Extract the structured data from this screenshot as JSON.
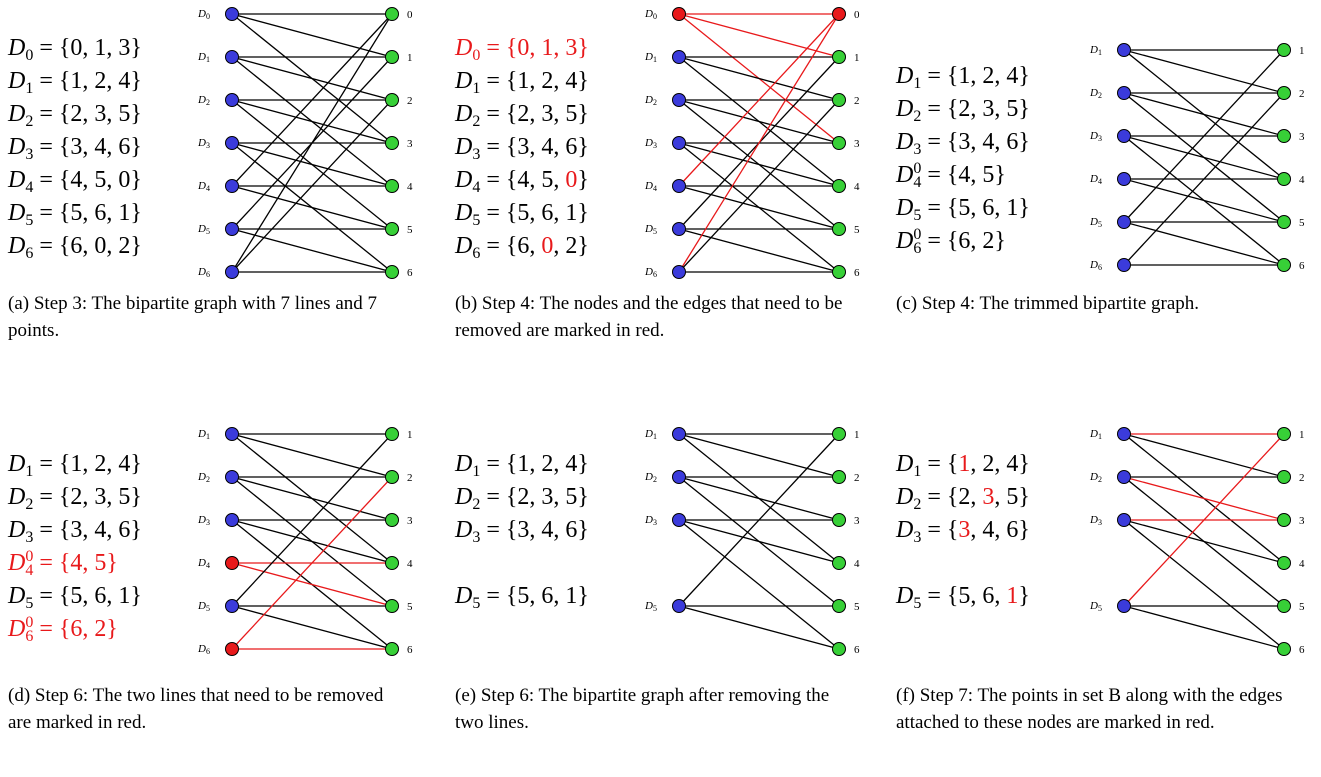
{
  "colors": {
    "line_node": "#3b3bdb",
    "point_node": "#37d037",
    "removed": "#e8191b",
    "edge": "#000000"
  },
  "panels": [
    {
      "id": "a",
      "caption": {
        "label": "(a)",
        "text": "Step 3: The bipartite graph with 7 lines and 7 points."
      },
      "sets": [
        {
          "name": "D",
          "sub": "0",
          "elements": [
            "0",
            "1",
            "3"
          ]
        },
        {
          "name": "D",
          "sub": "1",
          "elements": [
            "1",
            "2",
            "4"
          ]
        },
        {
          "name": "D",
          "sub": "2",
          "elements": [
            "2",
            "3",
            "5"
          ]
        },
        {
          "name": "D",
          "sub": "3",
          "elements": [
            "3",
            "4",
            "6"
          ]
        },
        {
          "name": "D",
          "sub": "4",
          "elements": [
            "4",
            "5",
            "0"
          ]
        },
        {
          "name": "D",
          "sub": "5",
          "elements": [
            "5",
            "6",
            "1"
          ]
        },
        {
          "name": "D",
          "sub": "6",
          "elements": [
            "6",
            "0",
            "2"
          ]
        }
      ],
      "left_nodes": [
        {
          "label": "D0",
          "slot": 0
        },
        {
          "label": "D1",
          "slot": 1
        },
        {
          "label": "D2",
          "slot": 2
        },
        {
          "label": "D3",
          "slot": 3
        },
        {
          "label": "D4",
          "slot": 4
        },
        {
          "label": "D5",
          "slot": 5
        },
        {
          "label": "D6",
          "slot": 6
        }
      ],
      "right_nodes": [
        {
          "label": "0",
          "slot": 0
        },
        {
          "label": "1",
          "slot": 1
        },
        {
          "label": "2",
          "slot": 2
        },
        {
          "label": "3",
          "slot": 3
        },
        {
          "label": "4",
          "slot": 4
        },
        {
          "label": "5",
          "slot": 5
        },
        {
          "label": "6",
          "slot": 6
        }
      ],
      "edges": [
        [
          "D0",
          "0"
        ],
        [
          "D0",
          "1"
        ],
        [
          "D0",
          "3"
        ],
        [
          "D1",
          "1"
        ],
        [
          "D1",
          "2"
        ],
        [
          "D1",
          "4"
        ],
        [
          "D2",
          "2"
        ],
        [
          "D2",
          "3"
        ],
        [
          "D2",
          "5"
        ],
        [
          "D3",
          "3"
        ],
        [
          "D3",
          "4"
        ],
        [
          "D3",
          "6"
        ],
        [
          "D4",
          "4"
        ],
        [
          "D4",
          "5"
        ],
        [
          "D4",
          "0"
        ],
        [
          "D5",
          "5"
        ],
        [
          "D5",
          "6"
        ],
        [
          "D5",
          "1"
        ],
        [
          "D6",
          "6"
        ],
        [
          "D6",
          "0"
        ],
        [
          "D6",
          "2"
        ]
      ]
    },
    {
      "id": "b",
      "caption": {
        "label": "(b)",
        "text": "Step 4: The nodes and the edges that need to be removed are marked in red."
      },
      "sets": [
        {
          "name": "D",
          "sub": "0",
          "elements": [
            "0",
            "1",
            "3"
          ],
          "red": true
        },
        {
          "name": "D",
          "sub": "1",
          "elements": [
            "1",
            "2",
            "4"
          ]
        },
        {
          "name": "D",
          "sub": "2",
          "elements": [
            "2",
            "3",
            "5"
          ]
        },
        {
          "name": "D",
          "sub": "3",
          "elements": [
            "3",
            "4",
            "6"
          ]
        },
        {
          "name": "D",
          "sub": "4",
          "elements": [
            "4",
            "5",
            "0"
          ],
          "red_elements": [
            2
          ]
        },
        {
          "name": "D",
          "sub": "5",
          "elements": [
            "5",
            "6",
            "1"
          ]
        },
        {
          "name": "D",
          "sub": "6",
          "elements": [
            "6",
            "0",
            "2"
          ],
          "red_elements": [
            1
          ]
        }
      ],
      "left_nodes": [
        {
          "label": "D0",
          "slot": 0,
          "red": true
        },
        {
          "label": "D1",
          "slot": 1
        },
        {
          "label": "D2",
          "slot": 2
        },
        {
          "label": "D3",
          "slot": 3
        },
        {
          "label": "D4",
          "slot": 4
        },
        {
          "label": "D5",
          "slot": 5
        },
        {
          "label": "D6",
          "slot": 6
        }
      ],
      "right_nodes": [
        {
          "label": "0",
          "slot": 0,
          "red": true
        },
        {
          "label": "1",
          "slot": 1
        },
        {
          "label": "2",
          "slot": 2
        },
        {
          "label": "3",
          "slot": 3
        },
        {
          "label": "4",
          "slot": 4
        },
        {
          "label": "5",
          "slot": 5
        },
        {
          "label": "6",
          "slot": 6
        }
      ],
      "edges": [
        [
          "D0",
          "0",
          1
        ],
        [
          "D0",
          "1",
          1
        ],
        [
          "D0",
          "3",
          1
        ],
        [
          "D1",
          "1"
        ],
        [
          "D1",
          "2"
        ],
        [
          "D1",
          "4"
        ],
        [
          "D2",
          "2"
        ],
        [
          "D2",
          "3"
        ],
        [
          "D2",
          "5"
        ],
        [
          "D3",
          "3"
        ],
        [
          "D3",
          "4"
        ],
        [
          "D3",
          "6"
        ],
        [
          "D4",
          "4"
        ],
        [
          "D4",
          "5"
        ],
        [
          "D4",
          "0",
          1
        ],
        [
          "D5",
          "5"
        ],
        [
          "D5",
          "6"
        ],
        [
          "D5",
          "1"
        ],
        [
          "D6",
          "6"
        ],
        [
          "D6",
          "0",
          1
        ],
        [
          "D6",
          "2"
        ]
      ]
    },
    {
      "id": "c",
      "caption": {
        "label": "(c)",
        "text": "Step 4: The trimmed bipartite graph."
      },
      "sets": [
        {
          "name": "D",
          "sub": "1",
          "elements": [
            "1",
            "2",
            "4"
          ]
        },
        {
          "name": "D",
          "sub": "2",
          "elements": [
            "2",
            "3",
            "5"
          ]
        },
        {
          "name": "D",
          "sub": "3",
          "elements": [
            "3",
            "4",
            "6"
          ]
        },
        {
          "name": "D",
          "sub": "4",
          "sup": "0",
          "elements": [
            "4",
            "5"
          ]
        },
        {
          "name": "D",
          "sub": "5",
          "elements": [
            "5",
            "6",
            "1"
          ]
        },
        {
          "name": "D",
          "sub": "6",
          "sup": "0",
          "elements": [
            "6",
            "2"
          ]
        }
      ],
      "left_nodes": [
        {
          "label": "D1",
          "slot": 0
        },
        {
          "label": "D2",
          "slot": 1
        },
        {
          "label": "D3",
          "slot": 2
        },
        {
          "label": "D4",
          "slot": 3
        },
        {
          "label": "D5",
          "slot": 4
        },
        {
          "label": "D6",
          "slot": 5
        }
      ],
      "right_nodes": [
        {
          "label": "1",
          "slot": 0
        },
        {
          "label": "2",
          "slot": 1
        },
        {
          "label": "3",
          "slot": 2
        },
        {
          "label": "4",
          "slot": 3
        },
        {
          "label": "5",
          "slot": 4
        },
        {
          "label": "6",
          "slot": 5
        }
      ],
      "edges": [
        [
          "D1",
          "1"
        ],
        [
          "D1",
          "2"
        ],
        [
          "D1",
          "4"
        ],
        [
          "D2",
          "2"
        ],
        [
          "D2",
          "3"
        ],
        [
          "D2",
          "5"
        ],
        [
          "D3",
          "3"
        ],
        [
          "D3",
          "4"
        ],
        [
          "D3",
          "6"
        ],
        [
          "D4",
          "4"
        ],
        [
          "D4",
          "5"
        ],
        [
          "D5",
          "5"
        ],
        [
          "D5",
          "6"
        ],
        [
          "D5",
          "1"
        ],
        [
          "D6",
          "6"
        ],
        [
          "D6",
          "2"
        ]
      ]
    },
    {
      "id": "d",
      "caption": {
        "label": "(d)",
        "text": "Step 6: The two lines that need to be removed are marked in red."
      },
      "sets": [
        {
          "name": "D",
          "sub": "1",
          "elements": [
            "1",
            "2",
            "4"
          ]
        },
        {
          "name": "D",
          "sub": "2",
          "elements": [
            "2",
            "3",
            "5"
          ]
        },
        {
          "name": "D",
          "sub": "3",
          "elements": [
            "3",
            "4",
            "6"
          ]
        },
        {
          "name": "D",
          "sub": "4",
          "sup": "0",
          "elements": [
            "4",
            "5"
          ],
          "red": true
        },
        {
          "name": "D",
          "sub": "5",
          "elements": [
            "5",
            "6",
            "1"
          ]
        },
        {
          "name": "D",
          "sub": "6",
          "sup": "0",
          "elements": [
            "6",
            "2"
          ],
          "red": true
        }
      ],
      "left_nodes": [
        {
          "label": "D1",
          "slot": 0
        },
        {
          "label": "D2",
          "slot": 1
        },
        {
          "label": "D3",
          "slot": 2
        },
        {
          "label": "D4",
          "slot": 3,
          "red": true
        },
        {
          "label": "D5",
          "slot": 4
        },
        {
          "label": "D6",
          "slot": 5,
          "red": true
        }
      ],
      "right_nodes": [
        {
          "label": "1",
          "slot": 0
        },
        {
          "label": "2",
          "slot": 1
        },
        {
          "label": "3",
          "slot": 2
        },
        {
          "label": "4",
          "slot": 3
        },
        {
          "label": "5",
          "slot": 4
        },
        {
          "label": "6",
          "slot": 5
        }
      ],
      "edges": [
        [
          "D1",
          "1"
        ],
        [
          "D1",
          "2"
        ],
        [
          "D1",
          "4"
        ],
        [
          "D2",
          "2"
        ],
        [
          "D2",
          "3"
        ],
        [
          "D2",
          "5"
        ],
        [
          "D3",
          "3"
        ],
        [
          "D3",
          "4"
        ],
        [
          "D3",
          "6"
        ],
        [
          "D4",
          "4",
          1
        ],
        [
          "D4",
          "5",
          1
        ],
        [
          "D5",
          "5"
        ],
        [
          "D5",
          "6"
        ],
        [
          "D5",
          "1"
        ],
        [
          "D6",
          "6",
          1
        ],
        [
          "D6",
          "2",
          1
        ]
      ]
    },
    {
      "id": "e",
      "caption": {
        "label": "(e)",
        "text": "Step 6: The bipartite graph after removing the two lines."
      },
      "sets": [
        {
          "name": "D",
          "sub": "1",
          "elements": [
            "1",
            "2",
            "4"
          ]
        },
        {
          "name": "D",
          "sub": "2",
          "elements": [
            "2",
            "3",
            "5"
          ]
        },
        {
          "name": "D",
          "sub": "3",
          "elements": [
            "3",
            "4",
            "6"
          ]
        },
        {
          "name": "D",
          "sub": "5",
          "elements": [
            "5",
            "6",
            "1"
          ],
          "gap": true
        }
      ],
      "left_nodes": [
        {
          "label": "D1",
          "slot": 0
        },
        {
          "label": "D2",
          "slot": 1
        },
        {
          "label": "D3",
          "slot": 2
        },
        {
          "label": "D5",
          "slot": 4
        }
      ],
      "right_nodes": [
        {
          "label": "1",
          "slot": 0
        },
        {
          "label": "2",
          "slot": 1
        },
        {
          "label": "3",
          "slot": 2
        },
        {
          "label": "4",
          "slot": 3
        },
        {
          "label": "5",
          "slot": 4
        },
        {
          "label": "6",
          "slot": 5
        }
      ],
      "edges": [
        [
          "D1",
          "1"
        ],
        [
          "D1",
          "2"
        ],
        [
          "D1",
          "4"
        ],
        [
          "D2",
          "2"
        ],
        [
          "D2",
          "3"
        ],
        [
          "D2",
          "5"
        ],
        [
          "D3",
          "3"
        ],
        [
          "D3",
          "4"
        ],
        [
          "D3",
          "6"
        ],
        [
          "D5",
          "5"
        ],
        [
          "D5",
          "6"
        ],
        [
          "D5",
          "1"
        ]
      ]
    },
    {
      "id": "f",
      "caption": {
        "label": "(f)",
        "text": "Step 7: The points in set B along with the edges attached to these nodes are marked in red."
      },
      "sets": [
        {
          "name": "D",
          "sub": "1",
          "elements": [
            "1",
            "2",
            "4"
          ],
          "red_elements": [
            0
          ]
        },
        {
          "name": "D",
          "sub": "2",
          "elements": [
            "2",
            "3",
            "5"
          ],
          "red_elements": [
            1
          ]
        },
        {
          "name": "D",
          "sub": "3",
          "elements": [
            "3",
            "4",
            "6"
          ],
          "red_elements": [
            0
          ]
        },
        {
          "name": "D",
          "sub": "5",
          "elements": [
            "5",
            "6",
            "1"
          ],
          "red_elements": [
            2
          ],
          "gap": true
        }
      ],
      "left_nodes": [
        {
          "label": "D1",
          "slot": 0
        },
        {
          "label": "D2",
          "slot": 1
        },
        {
          "label": "D3",
          "slot": 2
        },
        {
          "label": "D5",
          "slot": 4
        }
      ],
      "right_nodes": [
        {
          "label": "1",
          "slot": 0
        },
        {
          "label": "2",
          "slot": 1
        },
        {
          "label": "3",
          "slot": 2
        },
        {
          "label": "4",
          "slot": 3
        },
        {
          "label": "5",
          "slot": 4
        },
        {
          "label": "6",
          "slot": 5
        }
      ],
      "edges": [
        [
          "D1",
          "1",
          1
        ],
        [
          "D1",
          "2"
        ],
        [
          "D1",
          "4"
        ],
        [
          "D2",
          "2"
        ],
        [
          "D2",
          "3",
          1
        ],
        [
          "D2",
          "5"
        ],
        [
          "D3",
          "3",
          1
        ],
        [
          "D3",
          "4"
        ],
        [
          "D3",
          "6"
        ],
        [
          "D5",
          "5"
        ],
        [
          "D5",
          "6"
        ],
        [
          "D5",
          "1",
          1
        ]
      ]
    }
  ]
}
